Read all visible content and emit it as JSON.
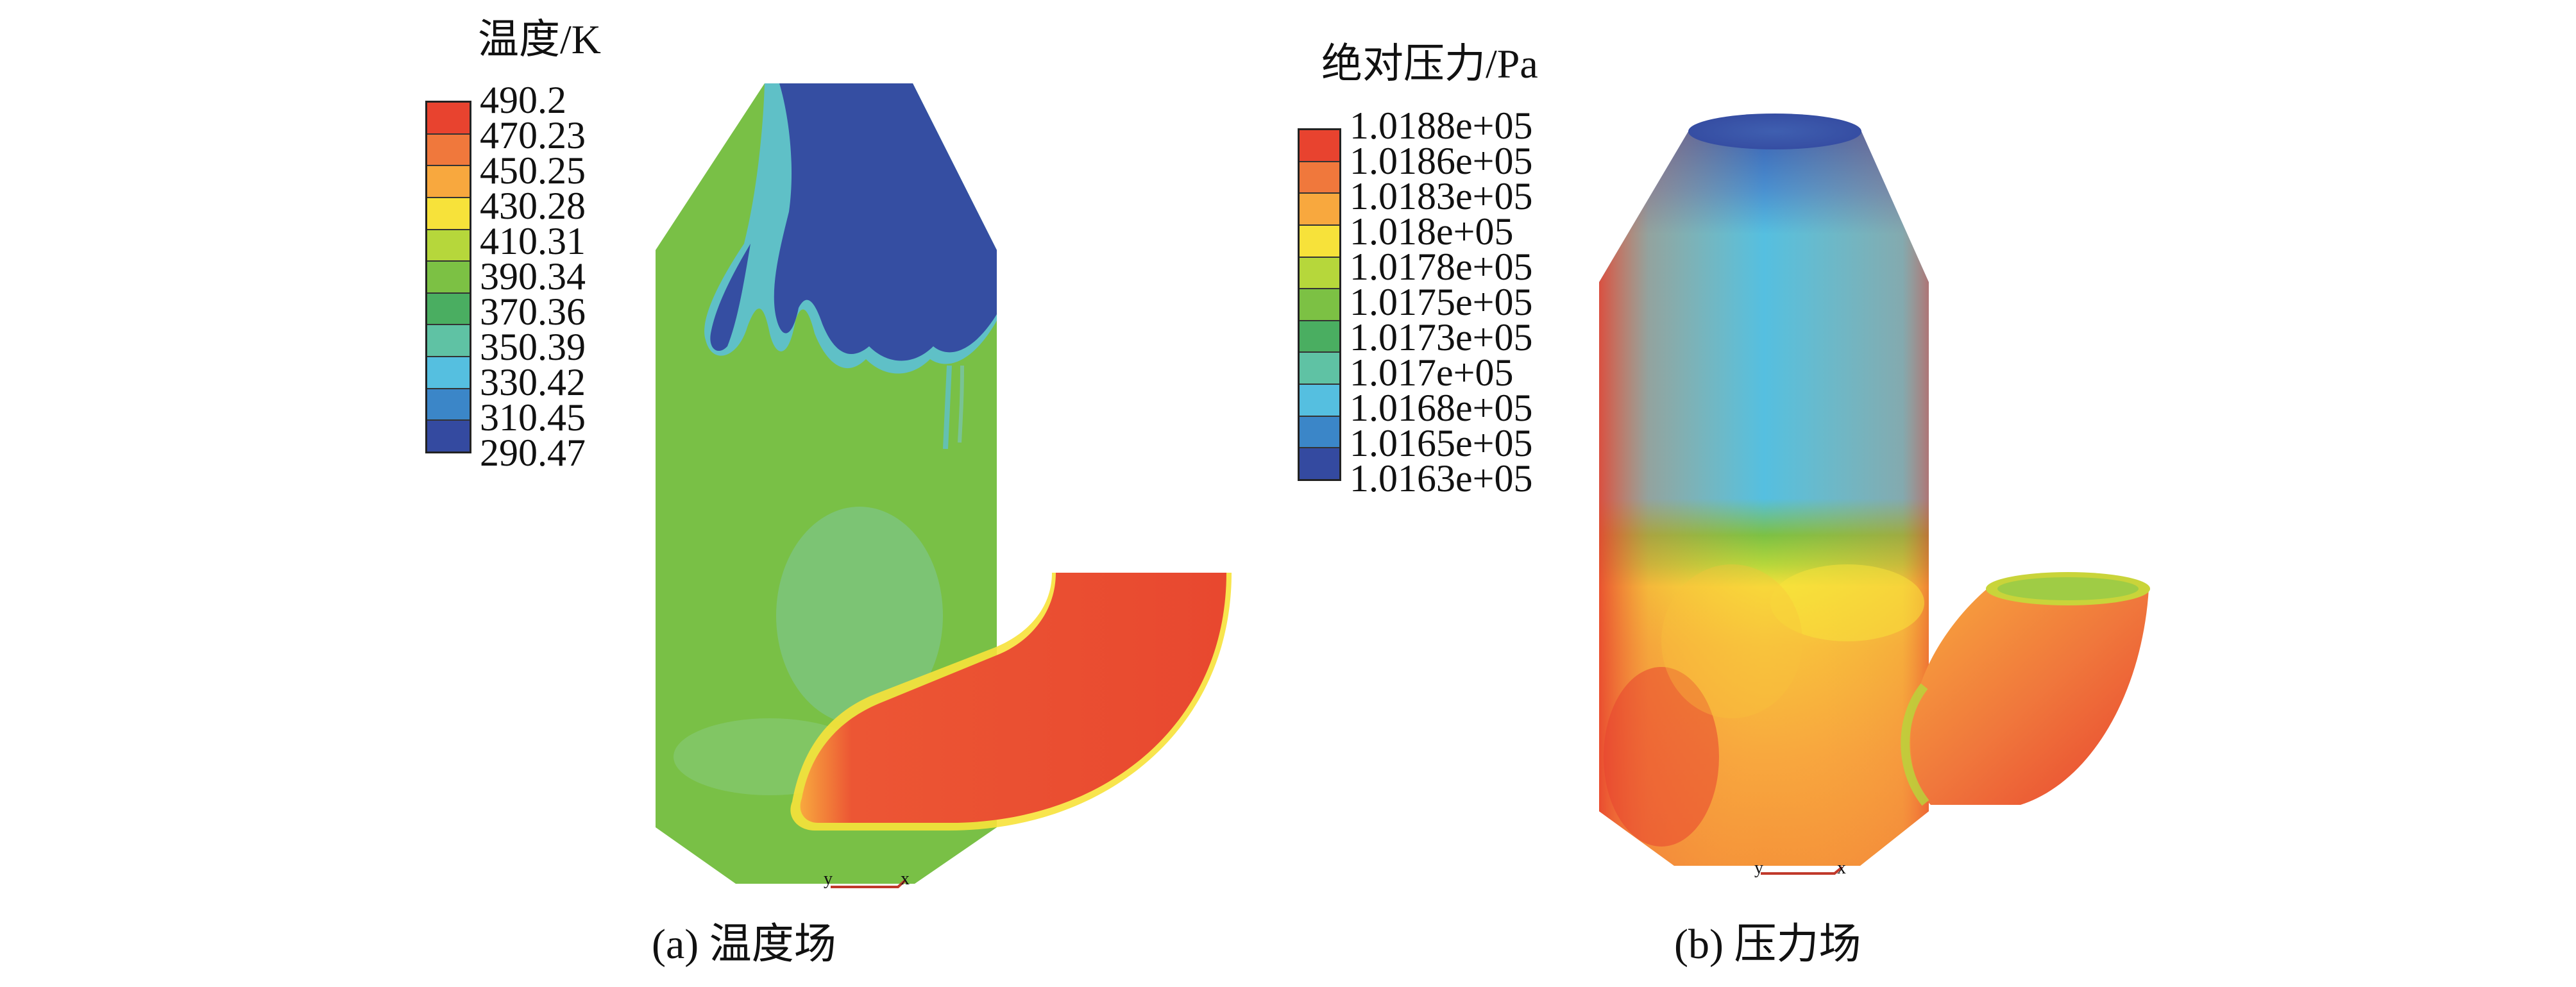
{
  "temperature": {
    "title": "温度/K",
    "ticks": [
      "490.2",
      "470.23",
      "450.25",
      "430.28",
      "410.31",
      "390.34",
      "370.36",
      "350.39",
      "330.42",
      "310.45",
      "290.47"
    ],
    "colors": [
      "#e8432f",
      "#f0783c",
      "#f8a83e",
      "#f7e23a",
      "#b6d73b",
      "#7cc144",
      "#4aae61",
      "#5fc2a4",
      "#55bfe0",
      "#3b86c8",
      "#344aa0"
    ],
    "caption": "(a) 温度场"
  },
  "pressure": {
    "title": "绝对压力/Pa",
    "ticks": [
      "1.0188e+05",
      "1.0186e+05",
      "1.0183e+05",
      "1.018e+05",
      "1.0178e+05",
      "1.0175e+05",
      "1.0173e+05",
      "1.017e+05",
      "1.0168e+05",
      "1.0165e+05",
      "1.0163e+05"
    ],
    "colors": [
      "#e8432f",
      "#f0783c",
      "#f8a83e",
      "#f7e23a",
      "#b6d73b",
      "#7cc144",
      "#4aae61",
      "#5fc2a4",
      "#55bfe0",
      "#3b86c8",
      "#344aa0"
    ],
    "caption": "(b) 压力场"
  },
  "axes_marks": {
    "y": "y",
    "x": "x"
  }
}
